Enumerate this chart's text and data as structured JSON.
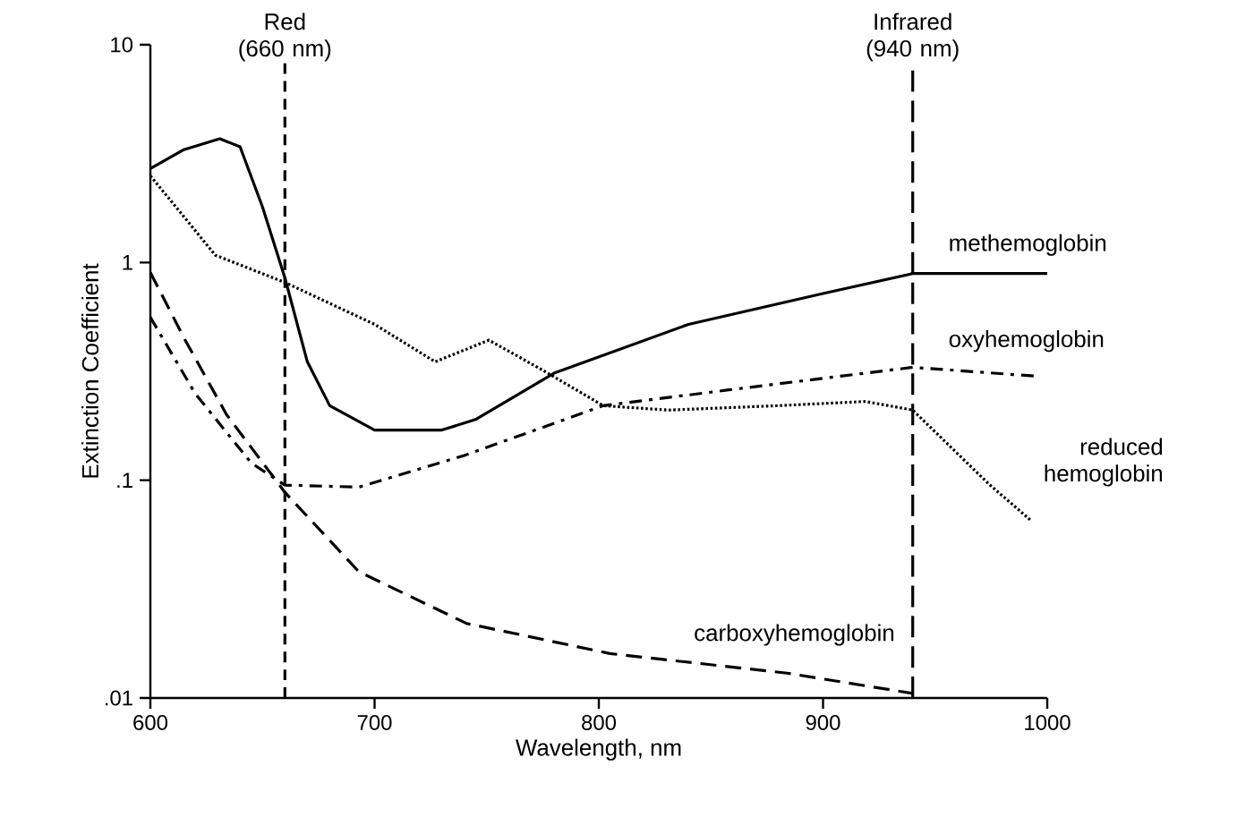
{
  "chart_data": {
    "type": "line",
    "xlabel": "Wavelength, nm",
    "ylabel": "Extinction Coefficient",
    "log": "y",
    "xlim": [
      600,
      1000
    ],
    "ylim": [
      0.01,
      10
    ],
    "xticks": [
      600,
      700,
      800,
      900,
      1000
    ],
    "yticks": [
      {
        "value": 0.01,
        "label": ".01"
      },
      {
        "value": 0.1,
        "label": ".1"
      },
      1,
      10
    ],
    "series": [
      {
        "name": "methemoglobin",
        "color": "#000000",
        "line_style": "solid",
        "x": [
          600,
          615,
          631,
          640,
          650,
          660,
          670,
          680,
          700,
          730,
          745,
          780,
          840,
          900,
          940,
          1000
        ],
        "values": [
          2.7,
          3.3,
          3.7,
          3.4,
          1.8,
          0.85,
          0.35,
          0.22,
          0.17,
          0.17,
          0.19,
          0.31,
          0.52,
          0.72,
          0.89,
          0.89
        ]
      },
      {
        "name": "oxyhemoglobin",
        "color": "#000000",
        "line_style": "dashdot",
        "x": [
          600,
          620,
          645,
          660,
          693,
          740,
          802,
          858,
          940,
          996
        ],
        "values": [
          0.56,
          0.25,
          0.12,
          0.095,
          0.093,
          0.13,
          0.22,
          0.26,
          0.33,
          0.3
        ]
      },
      {
        "name": "reduced hemoglobin",
        "color": "#000000",
        "line_style": "dotted",
        "x": [
          600,
          629,
          660,
          700,
          727,
          751,
          775,
          802,
          831,
          880,
          919,
          940,
          974,
          993
        ],
        "values": [
          2.5,
          1.08,
          0.81,
          0.52,
          0.35,
          0.44,
          0.32,
          0.22,
          0.21,
          0.22,
          0.23,
          0.21,
          0.096,
          0.065
        ]
      },
      {
        "name": "carboxyhemoglobin",
        "color": "#000000",
        "line_style": "dashed",
        "x": [
          600,
          615,
          634,
          660,
          693,
          741,
          805,
          884,
          940
        ],
        "values": [
          0.9,
          0.45,
          0.2,
          0.088,
          0.038,
          0.022,
          0.016,
          0.013,
          0.0105
        ]
      }
    ],
    "ref_lines": [
      {
        "axis": "x",
        "value": 660,
        "label": "Red (660 nm)",
        "line_style": "dashed"
      },
      {
        "axis": "x",
        "value": 940,
        "label": "Infrared (940 nm)",
        "line_style": "longdashed"
      }
    ]
  }
}
